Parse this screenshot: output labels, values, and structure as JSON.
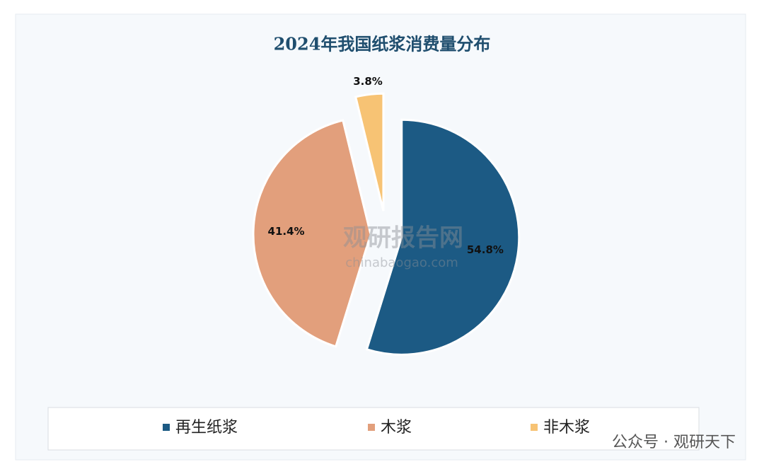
{
  "chart_data": {
    "type": "pie",
    "title": "2024年我国纸浆消费量分布",
    "categories": [
      "再生纸浆",
      "木浆",
      "非木浆"
    ],
    "values": [
      54.8,
      41.4,
      3.8
    ],
    "value_labels": [
      "54.8%",
      "41.4%",
      "3.8%"
    ],
    "colors": [
      "#1c5a84",
      "#e29f7c",
      "#f7c374"
    ],
    "legend": "bottom",
    "annotations": [
      "观研报告网",
      "chinabaogao.com",
      "公众号 · 观研天下"
    ]
  }
}
